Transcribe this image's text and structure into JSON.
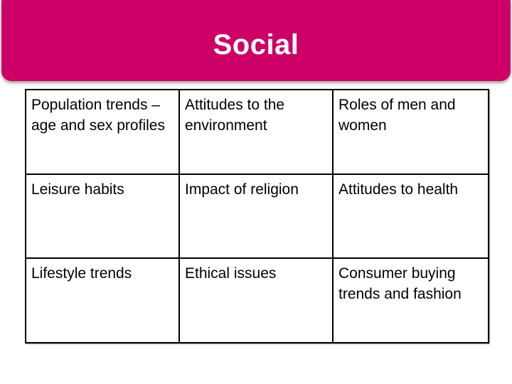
{
  "header": {
    "title": "Social",
    "background_color": "#cc0066",
    "title_color": "#ffffff"
  },
  "table": {
    "rows": [
      [
        "Population trends – age and sex profiles",
        "Attitudes to the environment",
        "Roles of men and women"
      ],
      [
        "Leisure habits",
        "Impact of religion",
        "Attitudes to health"
      ],
      [
        "Lifestyle trends",
        "Ethical issues",
        "Consumer buying trends and fashion"
      ]
    ]
  }
}
